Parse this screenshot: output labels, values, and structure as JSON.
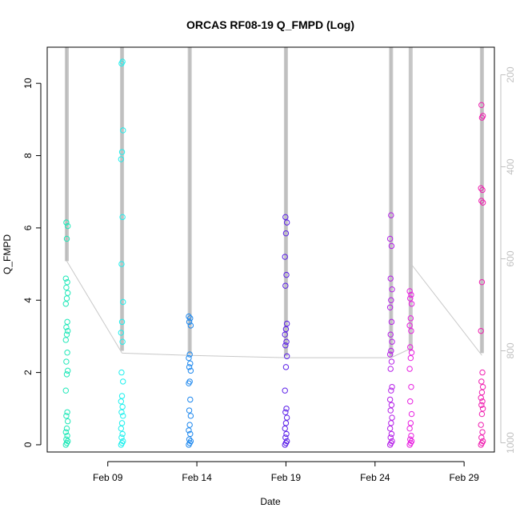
{
  "chart_data": {
    "type": "scatter",
    "title": "ORCAS RF08-19 Q_FMPD (Log)",
    "xlabel": "Date",
    "ylabel": "Q_FMPD",
    "x_ticks": [
      "Feb 09",
      "Feb 14",
      "Feb 19",
      "Feb 24",
      "Feb 29"
    ],
    "x_tick_days": [
      9,
      14,
      19,
      24,
      29
    ],
    "xlim_days": [
      5.6,
      30.7
    ],
    "ylim": [
      -0.2,
      11
    ],
    "y_ticks": [
      0,
      2,
      4,
      6,
      8,
      10
    ],
    "y_ticks_right": [
      200,
      400,
      600,
      800,
      1000
    ],
    "y_right_lim": [
      1020,
      140
    ],
    "grid": false,
    "axis_colors": {
      "primary": "#000000",
      "secondary": "#c0c0c0"
    },
    "series": [
      {
        "color": "#1ee8b8",
        "x": 6.7,
        "values": [
          0,
          0.05,
          0.1,
          0.15,
          0.25,
          0.35,
          0.45,
          0.65,
          0.8,
          0.9,
          1.5,
          1.95,
          2.05,
          2.3,
          2.55,
          2.9,
          3.05,
          3.15,
          3.25,
          3.4,
          3.9,
          4.05,
          4.2,
          4.35,
          4.5,
          4.6,
          5.7,
          6.05,
          6.15
        ]
      },
      {
        "color": "#1ef0ee",
        "x": 9.8,
        "values": [
          0,
          0.05,
          0.1,
          0.2,
          0.3,
          0.45,
          0.6,
          0.8,
          0.9,
          1.05,
          1.2,
          1.35,
          1.75,
          2.0,
          2.85,
          3.1,
          3.4,
          3.95,
          5.0,
          6.3,
          7.9,
          8.1,
          8.7,
          10.55,
          10.6
        ]
      },
      {
        "color": "#1e88ee",
        "x": 13.6,
        "values": [
          0,
          0.05,
          0.1,
          0.15,
          0.3,
          0.4,
          0.55,
          0.8,
          0.95,
          1.25,
          1.7,
          1.75,
          2.05,
          2.15,
          2.25,
          2.4,
          2.5,
          3.3,
          3.4,
          3.5,
          3.55
        ]
      },
      {
        "color": "#5a1ee8",
        "x": 19.0,
        "values": [
          0,
          0.05,
          0.1,
          0.2,
          0.3,
          0.45,
          0.6,
          0.75,
          0.9,
          1.0,
          1.5,
          2.15,
          2.45,
          2.75,
          2.85,
          3.05,
          3.2,
          3.35,
          4.4,
          4.7,
          5.2,
          5.85,
          6.15,
          6.3
        ]
      },
      {
        "color": "#b41ee8",
        "x": 24.9,
        "values": [
          0,
          0.05,
          0.1,
          0.2,
          0.3,
          0.45,
          0.6,
          0.75,
          0.95,
          1.1,
          1.25,
          1.5,
          1.6,
          2.1,
          2.3,
          2.5,
          2.6,
          2.85,
          3.05,
          3.4,
          3.8,
          4.0,
          4.3,
          4.6,
          5.5,
          5.7,
          6.35
        ]
      },
      {
        "color": "#e81ee0",
        "x": 26.0,
        "values": [
          0,
          0.05,
          0.1,
          0.15,
          0.25,
          0.45,
          0.6,
          0.85,
          1.2,
          1.6,
          2.1,
          2.4,
          2.55,
          2.7,
          3.15,
          3.3,
          3.5,
          3.9,
          4.05,
          4.15,
          4.25
        ]
      },
      {
        "color": "#f01eb0",
        "x": 30.0,
        "values": [
          0,
          0.05,
          0.1,
          0.2,
          0.35,
          0.55,
          0.85,
          1.0,
          1.1,
          1.2,
          1.3,
          1.45,
          1.6,
          1.75,
          2.0,
          3.15,
          4.5,
          6.7,
          6.75,
          7.05,
          7.1,
          9.05,
          9.1,
          9.4
        ]
      }
    ],
    "pressure_profiles": [
      {
        "x": 6.7,
        "top": 140,
        "bottom": 605
      },
      {
        "x": 9.8,
        "top": 140,
        "bottom": 800
      },
      {
        "x": 13.6,
        "top": 140,
        "bottom": 808
      },
      {
        "x": 19.0,
        "top": 140,
        "bottom": 812
      },
      {
        "x": 24.9,
        "top": 140,
        "bottom": 812
      },
      {
        "x": 26.0,
        "top": 140,
        "bottom": 800
      },
      {
        "x": 30.0,
        "top": 140,
        "bottom": 805
      }
    ],
    "pressure_connectors": [
      {
        "x1": 6.7,
        "p1": 605,
        "x2": 9.8,
        "p2": 805
      },
      {
        "x1": 9.8,
        "p1": 805,
        "x2": 13.6,
        "p2": 810
      },
      {
        "x1": 13.6,
        "p1": 810,
        "x2": 19.0,
        "p2": 815
      },
      {
        "x1": 19.0,
        "p1": 815,
        "x2": 24.9,
        "p2": 815
      },
      {
        "x1": 24.9,
        "p1": 815,
        "x2": 26.0,
        "p2": 795
      },
      {
        "x1": 26.0,
        "p1": 795,
        "x2": 26.0,
        "p2": 140
      },
      {
        "x1": 26.0,
        "p1": 610,
        "x2": 30.0,
        "p2": 810
      }
    ]
  }
}
